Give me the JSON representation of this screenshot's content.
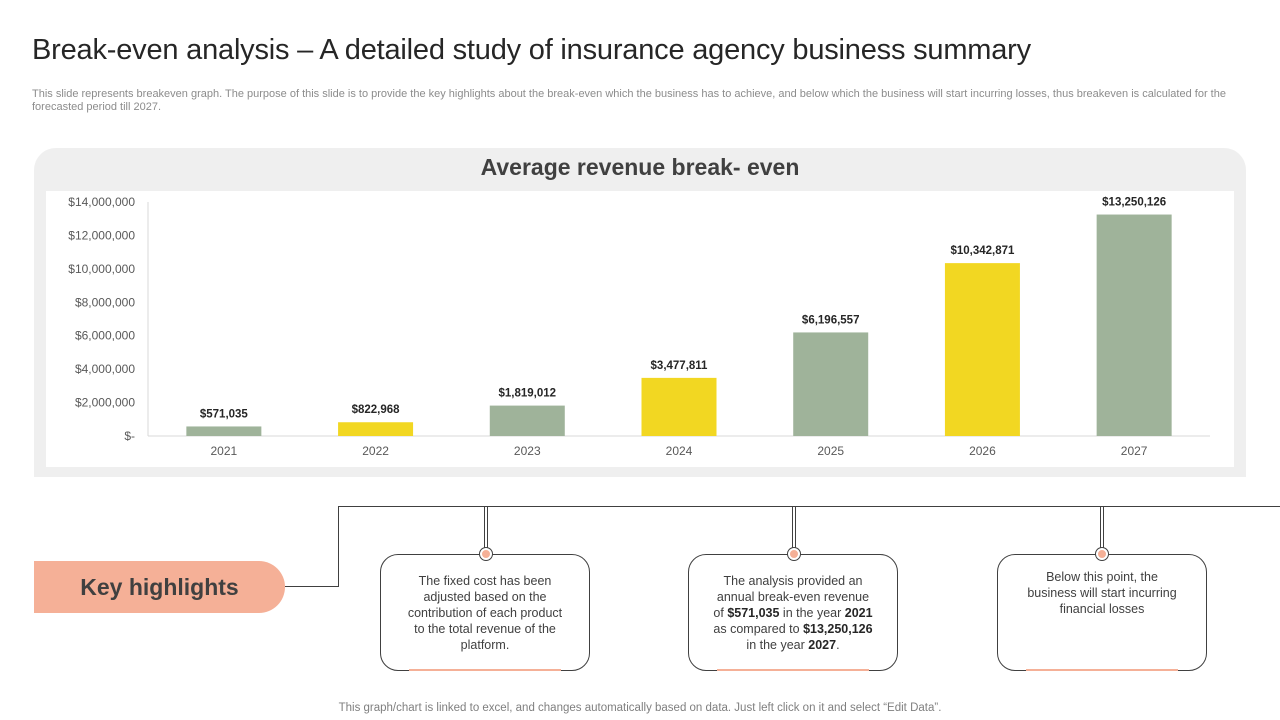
{
  "page": {
    "title": "Break-even analysis – A detailed study of insurance agency business summary",
    "subtitle": "This slide represents breakeven graph. The purpose of this slide is to provide the key highlights about the break-even which the business has to achieve, and below which the business will start incurring losses, thus breakeven is calculated for the forecasted period till 2027.",
    "footer": "This graph/chart is linked to excel,  and changes automatically based on data. Just left click on it and select “Edit Data”."
  },
  "chart_data": {
    "type": "bar",
    "title": "Average revenue break- even",
    "categories": [
      "2021",
      "2022",
      "2023",
      "2024",
      "2025",
      "2026",
      "2027"
    ],
    "values": [
      571035,
      822968,
      1819012,
      3477811,
      6196557,
      10342871,
      13250126
    ],
    "value_labels": [
      "$571,035",
      "$822,968",
      "$1,819,012",
      "$3,477,811",
      "$6,196,557",
      "$10,342,871",
      "$13,250,126"
    ],
    "bar_colors": [
      "#9fb39a",
      "#f2d722",
      "#9fb39a",
      "#f2d722",
      "#9fb39a",
      "#f2d722",
      "#9fb39a"
    ],
    "ylim": [
      0,
      14000000
    ],
    "y_ticks": [
      0,
      2000000,
      4000000,
      6000000,
      8000000,
      10000000,
      12000000,
      14000000
    ],
    "y_tick_labels": [
      "$-",
      "$2,000,000",
      "$4,000,000",
      "$6,000,000",
      "$8,000,000",
      "$10,000,000",
      "$12,000,000",
      "$14,000,000"
    ],
    "xlabel": "",
    "ylabel": "",
    "grid": false,
    "legend": "none"
  },
  "highlights": {
    "label": "Key highlights",
    "boxes": [
      {
        "text": "The fixed cost has been adjusted based on the contribution of each product to the total revenue  of the platform."
      },
      {
        "pre": "The analysis provided  an annual break-even  revenue of ",
        "v1": "$571,035",
        "mid1": " in the year ",
        "v2": "2021",
        "mid2": " as compared to ",
        "v3": "$13,250,126",
        "mid3": " in the year ",
        "v4": "2027",
        "post": "."
      },
      {
        "text": "Below this point, the business will start incurring financial losses"
      }
    ]
  },
  "colors": {
    "accent": "#f5b097",
    "bar_green": "#9fb39a",
    "bar_yellow": "#f2d722",
    "panel": "#efefef"
  }
}
